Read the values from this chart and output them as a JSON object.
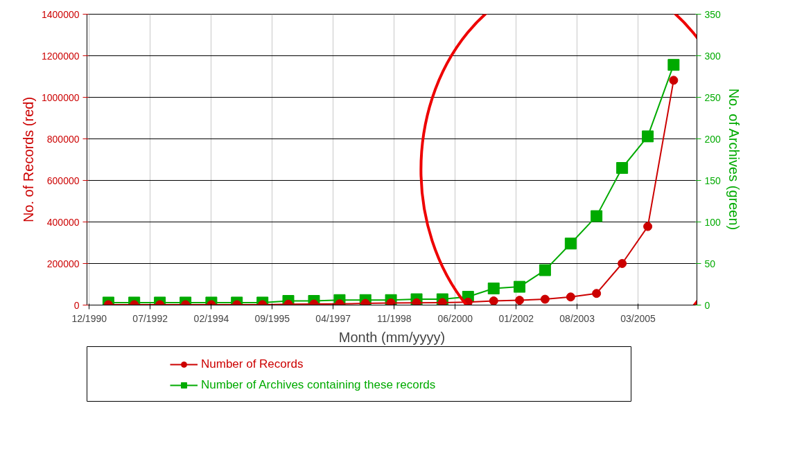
{
  "chart_data": {
    "type": "line",
    "xlabel": "Month (mm/yyyy)",
    "ylabel": "No. of Records (red)",
    "y2label": "No. of Archives (green)",
    "x": [
      "1991-06",
      "1992-02",
      "1992-10",
      "1993-06",
      "1994-02",
      "1994-10",
      "1995-06",
      "1996-02",
      "1996-10",
      "1997-06",
      "1998-02",
      "1998-10",
      "1999-06",
      "2000-02",
      "2000-10",
      "2001-06",
      "2002-02",
      "2002-10",
      "2003-06",
      "2004-02",
      "2004-10",
      "2005-06",
      "2006-02"
    ],
    "series": [
      {
        "name": "Number of Records",
        "color": "#cc0000",
        "marker": "circle",
        "values": [
          2000,
          2000,
          2000,
          2000,
          2000,
          2000,
          2000,
          4000,
          5000,
          6000,
          8000,
          10000,
          11000,
          12000,
          14000,
          20000,
          23000,
          28000,
          39000,
          56000,
          200000,
          378000,
          1082000
        ]
      },
      {
        "name": "Number of Archives containing these records",
        "color": "#00aa00",
        "marker": "square",
        "axis": "y2",
        "values": [
          3,
          3,
          3,
          3,
          3,
          3,
          3,
          5,
          5,
          6,
          6,
          6,
          7,
          7,
          10,
          20,
          22,
          42,
          74,
          107,
          165,
          203,
          289
        ]
      }
    ],
    "xlim": [
      "1990-11-10",
      "2006-09-10"
    ],
    "xticks": [
      {
        "value": "1990-12",
        "label": "12/1990"
      },
      {
        "value": "1992-07",
        "label": "07/1992"
      },
      {
        "value": "1994-02",
        "label": "02/1994"
      },
      {
        "value": "1995-09",
        "label": "09/1995"
      },
      {
        "value": "1997-04",
        "label": "04/1997"
      },
      {
        "value": "1998-11",
        "label": "11/1998"
      },
      {
        "value": "2000-06",
        "label": "06/2000"
      },
      {
        "value": "2002-01",
        "label": "01/2002"
      },
      {
        "value": "2003-08",
        "label": "08/2003"
      },
      {
        "value": "2005-03",
        "label": "03/2005"
      }
    ],
    "ylim": [
      0,
      1400000
    ],
    "yticks": [
      0,
      200000,
      400000,
      600000,
      800000,
      1000000,
      1200000,
      1400000
    ],
    "y2lim": [
      0,
      350
    ],
    "y2ticks": [
      0,
      50,
      100,
      150,
      200,
      250,
      300,
      350
    ],
    "grid": true,
    "legend": "bottom",
    "line_style": "solid"
  }
}
